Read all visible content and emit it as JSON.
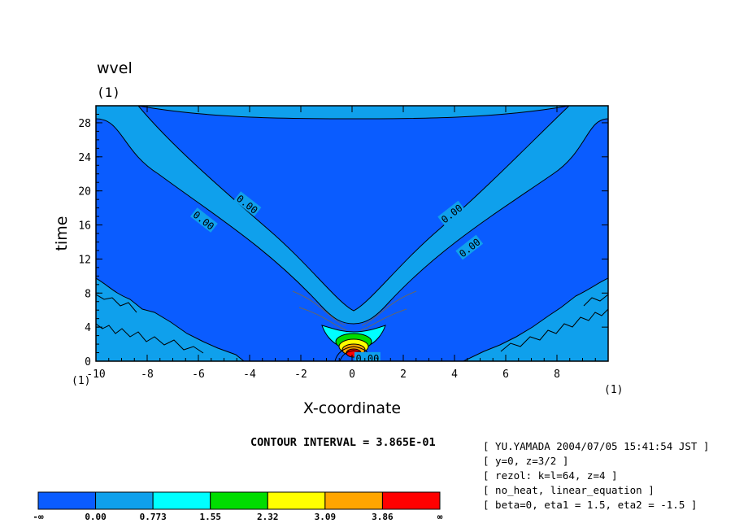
{
  "chart_data": {
    "type": "heatmap",
    "title": "wvel",
    "title_index": "(1)",
    "xlabel": "X-coordinate",
    "ylabel": "time",
    "x_index_left": "(1)",
    "x_index_right": "(1)",
    "xlim": [
      -10,
      10
    ],
    "ylim": [
      0,
      30
    ],
    "xticks": [
      -10,
      -8,
      -6,
      -4,
      -2,
      0,
      2,
      4,
      6,
      8
    ],
    "yticks": [
      0,
      4,
      8,
      12,
      16,
      20,
      24,
      28
    ],
    "contour_interval": "CONTOUR INTERVAL = 3.865E-01",
    "contour_labels": [
      {
        "text": "0.00",
        "x": -5.8,
        "y": 16.5,
        "angle": 38
      },
      {
        "text": "0.00",
        "x": -4.1,
        "y": 18.4,
        "angle": 38
      },
      {
        "text": "0.00",
        "x": 3.9,
        "y": 17.3,
        "angle": -38
      },
      {
        "text": "0.00",
        "x": 4.6,
        "y": 13.3,
        "angle": -38
      },
      {
        "text": "0.00",
        "x": 0.6,
        "y": 0.3,
        "angle": 0
      }
    ],
    "colorbar": {
      "boundaries": [
        "-∞",
        "0.00",
        "0.773",
        "1.55",
        "2.32",
        "3.09",
        "3.86",
        "∞"
      ],
      "colors": [
        "#0a5cff",
        "#0fa0ec",
        "#00ffff",
        "#00dd00",
        "#ffff00",
        "#ffa500",
        "#ff0000"
      ]
    }
  },
  "info": {
    "lines": [
      "[ YU.YAMADA 2004/07/05 15:41:54 JST ]",
      "[ y=0, z=3/2 ]",
      "[ rezol: k=l=64, z=4 ]",
      "[ no_heat, linear_equation ]",
      "[ beta=0, eta1 = 1.5, eta2 = -1.5 ]"
    ]
  }
}
